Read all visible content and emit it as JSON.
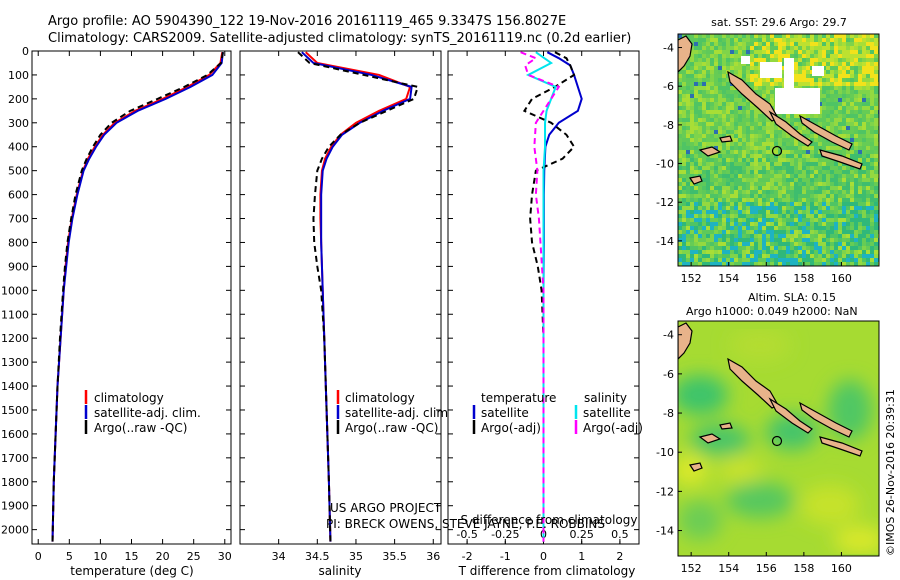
{
  "header": {
    "line1": "Argo profile: AO 5904390_122 19-Nov-2016 20161119_465 9.3347S 156.8027E",
    "line2": "Climatology: CARS2009. Satellite-adjusted climatology: synTS_20161119.nc (0.2d earlier)"
  },
  "credit": "©IMOS 26-Nov-2016 20:39:31",
  "project_note": {
    "line1": "US ARGO PROJECT",
    "line2": "PI: BRECK OWENS, STEVE JAYNE, P.E. ROBBINS"
  },
  "colors": {
    "climatology": "#ff0000",
    "satellite": "#0000cd",
    "argo": "#000000",
    "sal_satellite": "#00e5ee",
    "sal_argo": "#ff00ff"
  },
  "chart_data": [
    {
      "type": "line",
      "xlabel": "temperature (deg C)",
      "ylabel": "",
      "xlim": [
        -1,
        31
      ],
      "ylim": [
        2060,
        0
      ],
      "xticks": [
        0,
        5,
        10,
        15,
        20,
        25,
        30
      ],
      "yticks": [
        0,
        100,
        200,
        300,
        400,
        500,
        600,
        700,
        800,
        900,
        1000,
        1100,
        1200,
        1300,
        1400,
        1500,
        1600,
        1700,
        1800,
        1900,
        2000
      ],
      "legend": [
        "climatology",
        "satellite-adj. clim.",
        "Argo(..raw -QC)"
      ],
      "legend_position": "lower-center",
      "series": [
        {
          "name": "climatology",
          "color": "#ff0000",
          "style": "solid",
          "depth": [
            5,
            50,
            100,
            150,
            200,
            250,
            300,
            350,
            400,
            450,
            500,
            600,
            700,
            800,
            900,
            1000,
            1200,
            1400,
            1600,
            1800,
            2050
          ],
          "values": [
            29.6,
            29.3,
            27.5,
            24.0,
            20.0,
            15.6,
            12.3,
            10.4,
            9.1,
            8.0,
            7.2,
            6.2,
            5.4,
            4.8,
            4.4,
            4.1,
            3.6,
            3.1,
            2.8,
            2.5,
            2.3
          ]
        },
        {
          "name": "satellite-adj. clim.",
          "color": "#0000cd",
          "style": "solid",
          "depth": [
            5,
            50,
            100,
            150,
            200,
            250,
            300,
            350,
            400,
            450,
            500,
            600,
            700,
            800,
            900,
            1000,
            1200,
            1400,
            1600,
            1800,
            2050
          ],
          "values": [
            29.7,
            29.5,
            28.0,
            24.5,
            20.5,
            16.0,
            12.6,
            10.6,
            9.3,
            8.2,
            7.3,
            6.3,
            5.5,
            4.9,
            4.5,
            4.1,
            3.6,
            3.1,
            2.8,
            2.5,
            2.3
          ]
        },
        {
          "name": "Argo(..raw -QC)",
          "color": "#000000",
          "style": "dashed",
          "depth": [
            5,
            50,
            100,
            150,
            200,
            250,
            300,
            350,
            400,
            450,
            500,
            600,
            700,
            800,
            900,
            1000,
            1200,
            1400,
            1600,
            1800,
            2050
          ],
          "values": [
            29.7,
            29.4,
            27.2,
            23.5,
            19.2,
            14.8,
            11.8,
            10.0,
            8.8,
            7.8,
            7.0,
            6.0,
            5.3,
            4.7,
            4.3,
            4.0,
            3.5,
            3.1,
            2.8,
            2.5,
            2.3
          ]
        }
      ]
    },
    {
      "type": "line",
      "xlabel": "salinity",
      "ylabel": "",
      "xlim": [
        33.5,
        36.1
      ],
      "ylim": [
        2060,
        0
      ],
      "xticks": [
        34,
        34.5,
        35,
        35.5,
        36
      ],
      "yticks": [
        0,
        100,
        200,
        300,
        400,
        500,
        600,
        700,
        800,
        900,
        1000,
        1100,
        1200,
        1300,
        1400,
        1500,
        1600,
        1700,
        1800,
        1900,
        2000
      ],
      "legend": [
        "climatology",
        "satellite-adj. clim.",
        "Argo(..raw -QC)"
      ],
      "legend_position": "lower-center",
      "series": [
        {
          "name": "climatology",
          "color": "#ff0000",
          "style": "solid",
          "depth": [
            5,
            50,
            100,
            150,
            200,
            250,
            300,
            350,
            400,
            450,
            500,
            600,
            700,
            800,
            900,
            1000,
            1200,
            1400,
            1600,
            1800,
            2050
          ],
          "values": [
            34.35,
            34.5,
            35.3,
            35.7,
            35.65,
            35.3,
            35.0,
            34.8,
            34.68,
            34.6,
            34.56,
            34.54,
            34.54,
            34.55,
            34.56,
            34.57,
            34.59,
            34.61,
            34.63,
            34.65,
            34.67
          ]
        },
        {
          "name": "satellite-adj. clim.",
          "color": "#0000cd",
          "style": "solid",
          "depth": [
            5,
            50,
            100,
            150,
            200,
            250,
            300,
            350,
            400,
            450,
            500,
            600,
            700,
            800,
            900,
            1000,
            1200,
            1400,
            1600,
            1800,
            2050
          ],
          "values": [
            34.3,
            34.45,
            35.2,
            35.72,
            35.7,
            35.35,
            35.05,
            34.82,
            34.7,
            34.62,
            34.57,
            34.55,
            34.55,
            34.55,
            34.56,
            34.57,
            34.59,
            34.61,
            34.63,
            34.65,
            34.67
          ]
        },
        {
          "name": "Argo(..raw -QC)",
          "color": "#000000",
          "style": "dashed",
          "depth": [
            5,
            50,
            100,
            150,
            200,
            250,
            300,
            350,
            400,
            450,
            500,
            600,
            700,
            800,
            900,
            1000,
            1200,
            1400,
            1600,
            1800,
            2050
          ],
          "values": [
            34.25,
            34.4,
            35.1,
            35.8,
            35.75,
            35.4,
            35.05,
            34.8,
            34.65,
            34.56,
            34.5,
            34.47,
            34.45,
            34.46,
            34.5,
            34.55,
            34.59,
            34.61,
            34.63,
            34.65,
            34.67
          ]
        }
      ]
    },
    {
      "type": "line",
      "xlabel": "T difference from climatology",
      "xlabel_top": "S difference from climatology",
      "ylabel": "",
      "xlim": [
        -2.5,
        2.5
      ],
      "ylim": [
        2060,
        0
      ],
      "xticks": [
        -2,
        -1,
        0,
        1,
        2
      ],
      "xticks_top": [
        -0.5,
        -0.25,
        0,
        0.25,
        0.5
      ],
      "xticks_top_labels": [
        "-0.5",
        "-0.25",
        "0",
        "0.25",
        "0.5"
      ],
      "yticks": [
        0,
        100,
        200,
        300,
        400,
        500,
        600,
        700,
        800,
        900,
        1000,
        1100,
        1200,
        1300,
        1400,
        1500,
        1600,
        1700,
        1800,
        1900,
        2000
      ],
      "legend_headers": [
        "temperature",
        "salinity"
      ],
      "legend": [
        "satellite",
        "Argo(-adj)",
        "satellite",
        "Argo(-adj)"
      ],
      "legend_position": "lower-center",
      "series": [
        {
          "name": "satellite",
          "group": "temperature",
          "color": "#0000cd",
          "style": "solid",
          "depth": [
            5,
            30,
            60,
            100,
            150,
            200,
            250,
            300,
            350,
            400,
            500,
            600,
            800,
            1000,
            1400,
            2050
          ],
          "values": [
            0.1,
            0.4,
            0.7,
            0.8,
            0.9,
            1.0,
            0.9,
            0.4,
            0.15,
            0.05,
            0.02,
            0.01,
            0.01,
            0.0,
            0.0,
            0.0
          ]
        },
        {
          "name": "Argo(-adj)",
          "group": "temperature",
          "color": "#000000",
          "style": "dashed",
          "depth": [
            5,
            30,
            60,
            100,
            150,
            200,
            250,
            300,
            350,
            400,
            450,
            500,
            600,
            700,
            800,
            900,
            1000,
            1200,
            2050
          ],
          "values": [
            0.3,
            0.6,
            0.7,
            0.8,
            0.3,
            -0.3,
            -0.5,
            0.2,
            0.6,
            0.8,
            0.5,
            -0.2,
            -0.3,
            -0.35,
            -0.3,
            -0.15,
            -0.05,
            0.0,
            0.0
          ]
        },
        {
          "name": "satellite",
          "group": "salinity",
          "color": "#00e5ee",
          "style": "solid",
          "depth": [
            5,
            50,
            100,
            150,
            200,
            250,
            300,
            400,
            500,
            700,
            1000,
            2050
          ],
          "values": [
            -0.05,
            0.05,
            -0.1,
            0.08,
            0.05,
            0.02,
            0.01,
            0.01,
            0.0,
            0.0,
            0.0,
            0.0
          ]
        },
        {
          "name": "Argo(-adj)",
          "group": "salinity",
          "color": "#ff00ff",
          "style": "dashed",
          "depth": [
            5,
            30,
            60,
            100,
            150,
            200,
            300,
            400,
            500,
            600,
            700,
            800,
            1000,
            2050
          ],
          "values": [
            -0.15,
            -0.05,
            -0.12,
            -0.1,
            0.1,
            0.05,
            -0.05,
            -0.06,
            -0.04,
            -0.05,
            -0.03,
            -0.02,
            0.0,
            0.0
          ]
        }
      ]
    },
    {
      "type": "heatmap",
      "title": "sat. SST: 29.6  Argo: 29.7",
      "xticks": [
        152,
        154,
        156,
        158,
        160
      ],
      "yticks": [
        -4,
        -6,
        -8,
        -10,
        -12,
        -14
      ],
      "xlim": [
        151.3,
        162.0
      ],
      "ylim": [
        -15.3,
        -3.3
      ],
      "marker": {
        "lon": 156.8,
        "lat": -9.33
      },
      "colormap": "yellow-green-cyan"
    },
    {
      "type": "heatmap",
      "title_line1": "Altim. SLA: 0.15",
      "title_line2": "Argo h1000: 0.049 h2000: NaN",
      "xticks": [
        152,
        154,
        156,
        158,
        160
      ],
      "yticks": [
        -4,
        -6,
        -8,
        -10,
        -12,
        -14
      ],
      "xlim": [
        151.3,
        162.0
      ],
      "ylim": [
        -15.3,
        -3.3
      ],
      "marker": {
        "lon": 156.8,
        "lat": -9.33
      },
      "colormap": "yellow-green"
    }
  ]
}
